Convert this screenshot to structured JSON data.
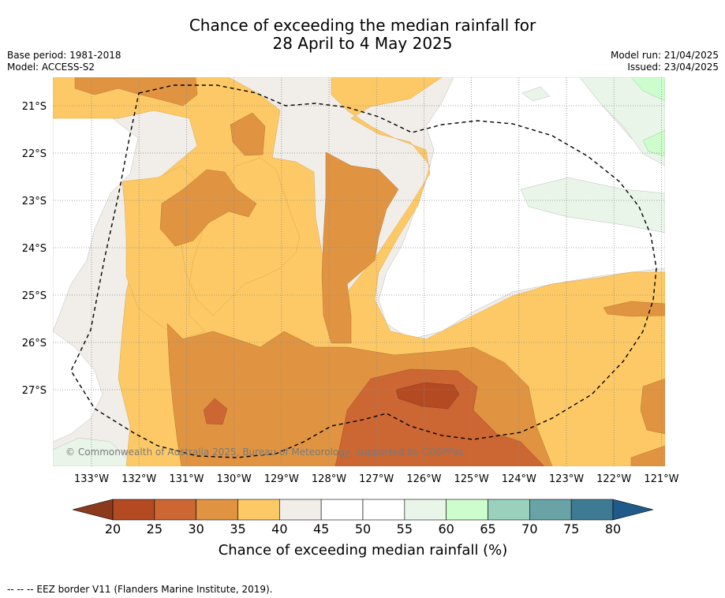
{
  "header": {
    "title_line1": "Chance of exceeding the median rainfall for",
    "title_line2": "28 April to 4 May 2025"
  },
  "meta": {
    "base_period": "Base period: 1981-2018",
    "model": "Model: ACCESS-S2",
    "model_run": "Model run: 21/04/2025",
    "issued": "Issued: 23/04/2025"
  },
  "map": {
    "lat_labels": [
      "21°S",
      "22°S",
      "23°S",
      "24°S",
      "25°S",
      "26°S",
      "27°S"
    ],
    "lon_labels": [
      "133°W",
      "132°W",
      "131°W",
      "130°W",
      "129°W",
      "128°W",
      "127°W",
      "126°W",
      "125°W",
      "124°W",
      "123°W",
      "122°W",
      "121°W"
    ],
    "copyright": "© Commonwealth of Australia 2025, Bureau of Meteorology, supported by COSPPac"
  },
  "colorbar": {
    "ticks": [
      "20",
      "25",
      "30",
      "35",
      "40",
      "45",
      "50",
      "55",
      "60",
      "65",
      "70",
      "75",
      "80"
    ],
    "label": "Chance of exceeding median rainfall (%)",
    "colors": [
      "#b34a22",
      "#cc6633",
      "#e09442",
      "#fdc966",
      "#f1ede8",
      "#ffffff",
      "#ffffff",
      "#e9f5e9",
      "#cdfccd",
      "#99d1bc",
      "#6aa3a6",
      "#3f7a94"
    ],
    "low_extend_color": "#8b3a1e",
    "high_extend_color": "#1f5a8a"
  },
  "footnote": "-- -- -- EEZ border V11 (Flanders Marine Institute, 2019)."
}
